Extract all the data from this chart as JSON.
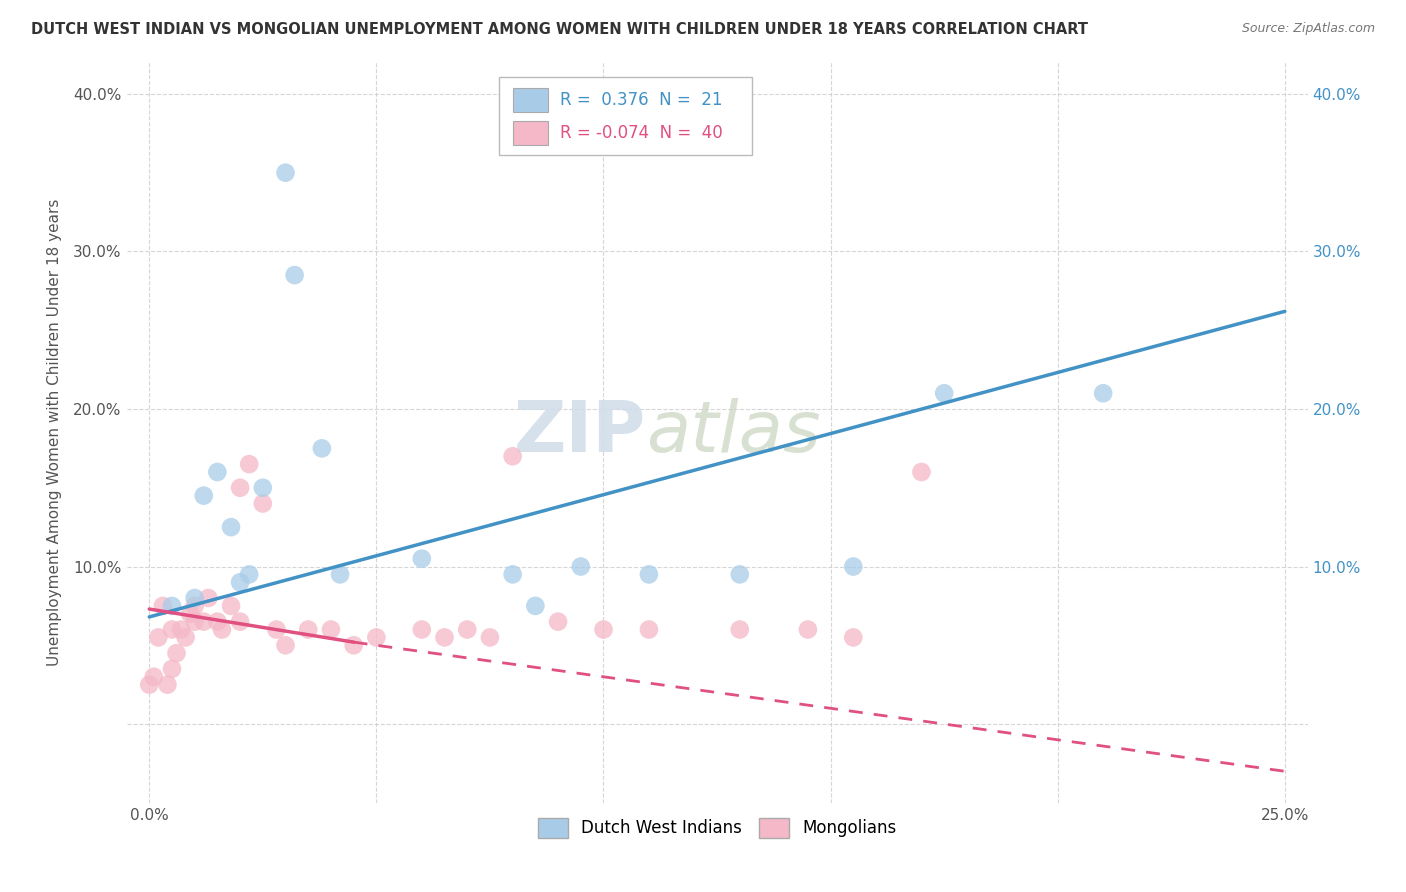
{
  "title": "DUTCH WEST INDIAN VS MONGOLIAN UNEMPLOYMENT AMONG WOMEN WITH CHILDREN UNDER 18 YEARS CORRELATION CHART",
  "source": "Source: ZipAtlas.com",
  "ylabel": "Unemployment Among Women with Children Under 18 years",
  "background_color": "#ffffff",
  "grid_color": "#cccccc",
  "watermark_zip": "ZIP",
  "watermark_atlas": "atlas",
  "blue_R": 0.376,
  "blue_N": 21,
  "pink_R": -0.074,
  "pink_N": 40,
  "blue_scatter_x": [
    0.005,
    0.01,
    0.012,
    0.015,
    0.018,
    0.02,
    0.022,
    0.025,
    0.03,
    0.032,
    0.038,
    0.042,
    0.06,
    0.08,
    0.085,
    0.095,
    0.11,
    0.13,
    0.155,
    0.175,
    0.21
  ],
  "blue_scatter_y": [
    0.075,
    0.08,
    0.145,
    0.16,
    0.125,
    0.09,
    0.095,
    0.15,
    0.35,
    0.285,
    0.175,
    0.095,
    0.105,
    0.095,
    0.075,
    0.1,
    0.095,
    0.095,
    0.1,
    0.21,
    0.21
  ],
  "pink_scatter_x": [
    0.0,
    0.001,
    0.002,
    0.003,
    0.004,
    0.005,
    0.005,
    0.006,
    0.007,
    0.008,
    0.009,
    0.01,
    0.01,
    0.012,
    0.013,
    0.015,
    0.016,
    0.018,
    0.02,
    0.02,
    0.022,
    0.025,
    0.028,
    0.03,
    0.035,
    0.04,
    0.045,
    0.05,
    0.06,
    0.065,
    0.07,
    0.075,
    0.08,
    0.09,
    0.1,
    0.11,
    0.13,
    0.145,
    0.155,
    0.17
  ],
  "pink_scatter_y": [
    0.025,
    0.03,
    0.055,
    0.075,
    0.025,
    0.035,
    0.06,
    0.045,
    0.06,
    0.055,
    0.07,
    0.065,
    0.075,
    0.065,
    0.08,
    0.065,
    0.06,
    0.075,
    0.065,
    0.15,
    0.165,
    0.14,
    0.06,
    0.05,
    0.06,
    0.06,
    0.05,
    0.055,
    0.06,
    0.055,
    0.06,
    0.055,
    0.17,
    0.065,
    0.06,
    0.06,
    0.06,
    0.06,
    0.055,
    0.16
  ],
  "blue_line_x0": 0.0,
  "blue_line_y0": 0.068,
  "blue_line_x1": 0.25,
  "blue_line_y1": 0.262,
  "pink_line_solid_x0": 0.0,
  "pink_line_solid_y0": 0.073,
  "pink_line_solid_x1": 0.045,
  "pink_line_solid_y1": 0.052,
  "pink_line_dash_x0": 0.045,
  "pink_line_dash_y0": 0.052,
  "pink_line_dash_x1": 0.25,
  "pink_line_dash_y1": -0.03,
  "xlim": [
    -0.005,
    0.255
  ],
  "ylim": [
    -0.05,
    0.42
  ],
  "xticks": [
    0.0,
    0.05,
    0.1,
    0.15,
    0.2,
    0.25
  ],
  "xtick_labels": [
    "0.0%",
    "",
    "",
    "",
    "",
    "25.0%"
  ],
  "yticks": [
    0.0,
    0.1,
    0.2,
    0.3,
    0.4
  ],
  "ytick_labels_left": [
    "",
    "10.0%",
    "20.0%",
    "30.0%",
    "40.0%"
  ],
  "ytick_labels_right": [
    "",
    "10.0%",
    "20.0%",
    "30.0%",
    "40.0%"
  ],
  "blue_color": "#a8cce8",
  "pink_color": "#f4b8c8",
  "blue_line_color": "#4292c6",
  "pink_line_color": "#e05080",
  "title_color": "#333333",
  "source_color": "#777777",
  "axis_label_color": "#555555",
  "tick_color": "#555555",
  "right_tick_color": "#4292c6"
}
